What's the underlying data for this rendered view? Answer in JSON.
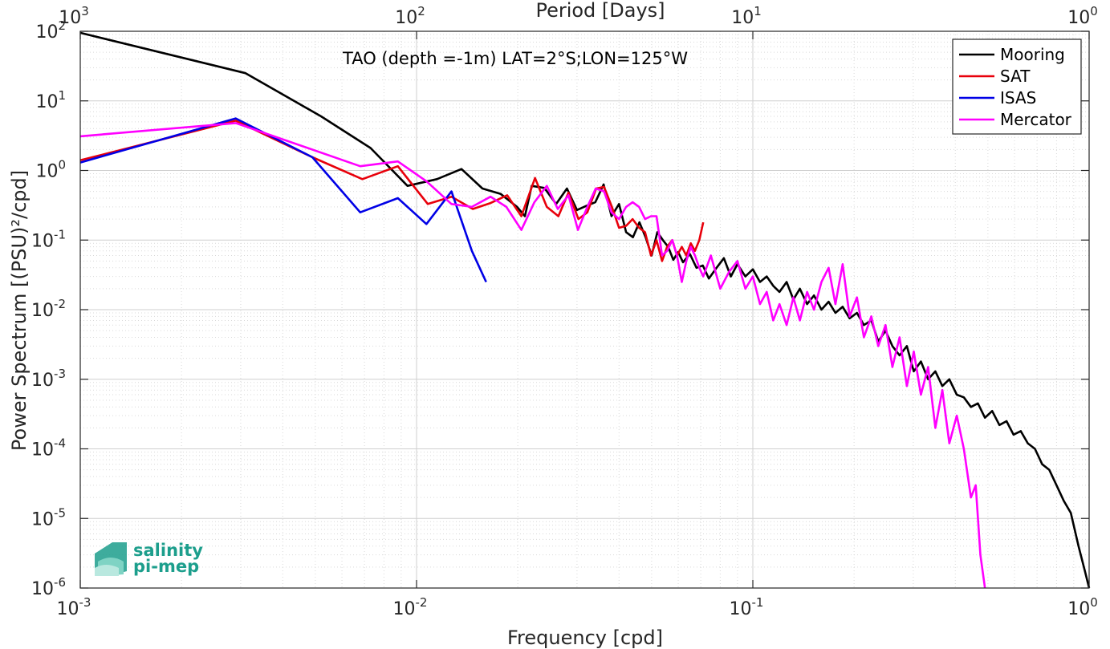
{
  "chart_data": {
    "type": "line",
    "title": "TAO (depth =-1m) LAT=2°S;LON=125°W",
    "xlabel": "Frequency [cpd]",
    "ylabel": "Power Spectrum [(PSU)²/cpd]",
    "top_xlabel": "Period [Days]",
    "xscale": "log",
    "yscale": "log",
    "xlim": [
      0.001,
      1
    ],
    "ylim": [
      1e-06,
      100
    ],
    "grid": true,
    "legend_position": "top-right",
    "x_ticks": [
      {
        "base": "10",
        "exp": "-3"
      },
      {
        "base": "10",
        "exp": "-2"
      },
      {
        "base": "10",
        "exp": "-1"
      },
      {
        "base": "10",
        "exp": "0"
      }
    ],
    "top_ticks": [
      {
        "base": "10",
        "exp": "3"
      },
      {
        "base": "10",
        "exp": "2"
      },
      {
        "base": "10",
        "exp": "1"
      },
      {
        "base": "10",
        "exp": "0"
      }
    ],
    "y_ticks": [
      {
        "base": "10",
        "exp": "-6"
      },
      {
        "base": "10",
        "exp": "-5"
      },
      {
        "base": "10",
        "exp": "-4"
      },
      {
        "base": "10",
        "exp": "-3"
      },
      {
        "base": "10",
        "exp": "-2"
      },
      {
        "base": "10",
        "exp": "-1"
      },
      {
        "base": "10",
        "exp": "0"
      },
      {
        "base": "10",
        "exp": "1"
      },
      {
        "base": "10",
        "exp": "2"
      }
    ],
    "series": [
      {
        "name": "Mooring",
        "color": "#000000",
        "points": [
          [
            0.001,
            95
          ],
          [
            0.0031,
            25
          ],
          [
            0.0052,
            6
          ],
          [
            0.0073,
            2.1
          ],
          [
            0.0094,
            0.6
          ],
          [
            0.0115,
            0.75
          ],
          [
            0.0136,
            1.05
          ],
          [
            0.0157,
            0.55
          ],
          [
            0.0178,
            0.46
          ],
          [
            0.0199,
            0.3
          ],
          [
            0.021,
            0.22
          ],
          [
            0.022,
            0.6
          ],
          [
            0.024,
            0.56
          ],
          [
            0.026,
            0.33
          ],
          [
            0.028,
            0.55
          ],
          [
            0.03,
            0.27
          ],
          [
            0.032,
            0.31
          ],
          [
            0.034,
            0.35
          ],
          [
            0.036,
            0.63
          ],
          [
            0.038,
            0.22
          ],
          [
            0.04,
            0.33
          ],
          [
            0.042,
            0.13
          ],
          [
            0.044,
            0.11
          ],
          [
            0.046,
            0.18
          ],
          [
            0.048,
            0.11
          ],
          [
            0.05,
            0.06
          ],
          [
            0.052,
            0.13
          ],
          [
            0.054,
            0.1
          ],
          [
            0.056,
            0.08
          ],
          [
            0.058,
            0.052
          ],
          [
            0.06,
            0.067
          ],
          [
            0.062,
            0.048
          ],
          [
            0.065,
            0.063
          ],
          [
            0.068,
            0.04
          ],
          [
            0.071,
            0.043
          ],
          [
            0.074,
            0.028
          ],
          [
            0.078,
            0.04
          ],
          [
            0.082,
            0.055
          ],
          [
            0.086,
            0.03
          ],
          [
            0.09,
            0.045
          ],
          [
            0.095,
            0.03
          ],
          [
            0.1,
            0.038
          ],
          [
            0.105,
            0.025
          ],
          [
            0.11,
            0.03
          ],
          [
            0.115,
            0.022
          ],
          [
            0.12,
            0.018
          ],
          [
            0.126,
            0.025
          ],
          [
            0.132,
            0.014
          ],
          [
            0.138,
            0.02
          ],
          [
            0.145,
            0.012
          ],
          [
            0.152,
            0.016
          ],
          [
            0.16,
            0.01
          ],
          [
            0.168,
            0.013
          ],
          [
            0.176,
            0.009
          ],
          [
            0.185,
            0.011
          ],
          [
            0.194,
            0.0075
          ],
          [
            0.204,
            0.009
          ],
          [
            0.214,
            0.006
          ],
          [
            0.225,
            0.007
          ],
          [
            0.236,
            0.0035
          ],
          [
            0.248,
            0.005
          ],
          [
            0.26,
            0.003
          ],
          [
            0.273,
            0.0022
          ],
          [
            0.287,
            0.003
          ],
          [
            0.301,
            0.0013
          ],
          [
            0.316,
            0.0018
          ],
          [
            0.332,
            0.001
          ],
          [
            0.349,
            0.0013
          ],
          [
            0.366,
            0.0008
          ],
          [
            0.384,
            0.001
          ],
          [
            0.404,
            0.0006
          ],
          [
            0.424,
            0.00055
          ],
          [
            0.445,
            0.0004
          ],
          [
            0.467,
            0.00045
          ],
          [
            0.49,
            0.00028
          ],
          [
            0.515,
            0.00035
          ],
          [
            0.541,
            0.00022
          ],
          [
            0.568,
            0.00025
          ],
          [
            0.596,
            0.00016
          ],
          [
            0.626,
            0.00018
          ],
          [
            0.657,
            0.00012
          ],
          [
            0.69,
            0.0001
          ],
          [
            0.725,
            6e-05
          ],
          [
            0.761,
            5e-05
          ],
          [
            0.8,
            3e-05
          ],
          [
            0.84,
            1.8e-05
          ],
          [
            0.882,
            1.2e-05
          ],
          [
            0.93,
            4e-06
          ],
          [
            0.97,
            1.8e-06
          ],
          [
            1.0,
            1e-06
          ]
        ]
      },
      {
        "name": "SAT",
        "color": "#e8000b",
        "points": [
          [
            0.001,
            1.4
          ],
          [
            0.0029,
            5.2
          ],
          [
            0.0049,
            1.55
          ],
          [
            0.0069,
            0.75
          ],
          [
            0.0088,
            1.15
          ],
          [
            0.0108,
            0.33
          ],
          [
            0.0127,
            0.42
          ],
          [
            0.0147,
            0.28
          ],
          [
            0.0166,
            0.34
          ],
          [
            0.0186,
            0.44
          ],
          [
            0.0205,
            0.22
          ],
          [
            0.0225,
            0.78
          ],
          [
            0.0244,
            0.3
          ],
          [
            0.0264,
            0.22
          ],
          [
            0.0283,
            0.48
          ],
          [
            0.0303,
            0.2
          ],
          [
            0.0322,
            0.25
          ],
          [
            0.0342,
            0.55
          ],
          [
            0.0361,
            0.58
          ],
          [
            0.0381,
            0.3
          ],
          [
            0.04,
            0.15
          ],
          [
            0.042,
            0.16
          ],
          [
            0.0439,
            0.2
          ],
          [
            0.0459,
            0.15
          ],
          [
            0.0478,
            0.13
          ],
          [
            0.0498,
            0.06
          ],
          [
            0.0517,
            0.1
          ],
          [
            0.0537,
            0.05
          ],
          [
            0.0556,
            0.08
          ],
          [
            0.0576,
            0.1
          ],
          [
            0.0595,
            0.06
          ],
          [
            0.0615,
            0.08
          ],
          [
            0.0634,
            0.06
          ],
          [
            0.0654,
            0.09
          ],
          [
            0.0673,
            0.07
          ],
          [
            0.0693,
            0.1
          ],
          [
            0.0712,
            0.18
          ]
        ]
      },
      {
        "name": "ISAS",
        "color": "#0000e6",
        "points": [
          [
            0.001,
            1.3
          ],
          [
            0.0029,
            5.6
          ],
          [
            0.0049,
            1.55
          ],
          [
            0.0068,
            0.25
          ],
          [
            0.0088,
            0.4
          ],
          [
            0.0107,
            0.17
          ],
          [
            0.0127,
            0.5
          ],
          [
            0.0146,
            0.07
          ],
          [
            0.0161,
            0.025
          ]
        ]
      },
      {
        "name": "Mercator",
        "color": "#ff00ff",
        "points": [
          [
            0.001,
            3.1
          ],
          [
            0.0029,
            4.8
          ],
          [
            0.0068,
            1.15
          ],
          [
            0.0088,
            1.35
          ],
          [
            0.0107,
            0.7
          ],
          [
            0.0127,
            0.33
          ],
          [
            0.0146,
            0.3
          ],
          [
            0.0166,
            0.42
          ],
          [
            0.0185,
            0.3
          ],
          [
            0.0205,
            0.14
          ],
          [
            0.0224,
            0.35
          ],
          [
            0.0244,
            0.6
          ],
          [
            0.0263,
            0.28
          ],
          [
            0.0283,
            0.44
          ],
          [
            0.0302,
            0.14
          ],
          [
            0.0322,
            0.3
          ],
          [
            0.0341,
            0.55
          ],
          [
            0.0361,
            0.5
          ],
          [
            0.038,
            0.25
          ],
          [
            0.04,
            0.2
          ],
          [
            0.042,
            0.3
          ],
          [
            0.0439,
            0.35
          ],
          [
            0.0459,
            0.3
          ],
          [
            0.0478,
            0.2
          ],
          [
            0.0498,
            0.22
          ],
          [
            0.0517,
            0.22
          ],
          [
            0.0537,
            0.06
          ],
          [
            0.0556,
            0.07
          ],
          [
            0.0576,
            0.1
          ],
          [
            0.0595,
            0.06
          ],
          [
            0.0615,
            0.025
          ],
          [
            0.0634,
            0.05
          ],
          [
            0.0654,
            0.08
          ],
          [
            0.0673,
            0.06
          ],
          [
            0.0693,
            0.04
          ],
          [
            0.0712,
            0.03
          ],
          [
            0.075,
            0.06
          ],
          [
            0.08,
            0.02
          ],
          [
            0.085,
            0.035
          ],
          [
            0.09,
            0.05
          ],
          [
            0.095,
            0.02
          ],
          [
            0.1,
            0.03
          ],
          [
            0.105,
            0.012
          ],
          [
            0.11,
            0.018
          ],
          [
            0.115,
            0.007
          ],
          [
            0.12,
            0.012
          ],
          [
            0.126,
            0.006
          ],
          [
            0.132,
            0.015
          ],
          [
            0.138,
            0.007
          ],
          [
            0.145,
            0.018
          ],
          [
            0.152,
            0.01
          ],
          [
            0.16,
            0.025
          ],
          [
            0.168,
            0.04
          ],
          [
            0.176,
            0.012
          ],
          [
            0.185,
            0.045
          ],
          [
            0.194,
            0.008
          ],
          [
            0.204,
            0.015
          ],
          [
            0.214,
            0.004
          ],
          [
            0.225,
            0.008
          ],
          [
            0.236,
            0.003
          ],
          [
            0.248,
            0.006
          ],
          [
            0.26,
            0.0015
          ],
          [
            0.273,
            0.004
          ],
          [
            0.287,
            0.0008
          ],
          [
            0.301,
            0.0025
          ],
          [
            0.316,
            0.0006
          ],
          [
            0.332,
            0.0015
          ],
          [
            0.349,
            0.0002
          ],
          [
            0.366,
            0.0007
          ],
          [
            0.384,
            0.00012
          ],
          [
            0.404,
            0.0003
          ],
          [
            0.424,
            0.0001
          ],
          [
            0.445,
            2e-05
          ],
          [
            0.46,
            3e-05
          ],
          [
            0.475,
            3e-06
          ],
          [
            0.49,
            1e-06
          ]
        ]
      }
    ]
  },
  "logo": {
    "line1": "salinity",
    "line2": "pi-mep",
    "color": "#1c9e8c"
  }
}
